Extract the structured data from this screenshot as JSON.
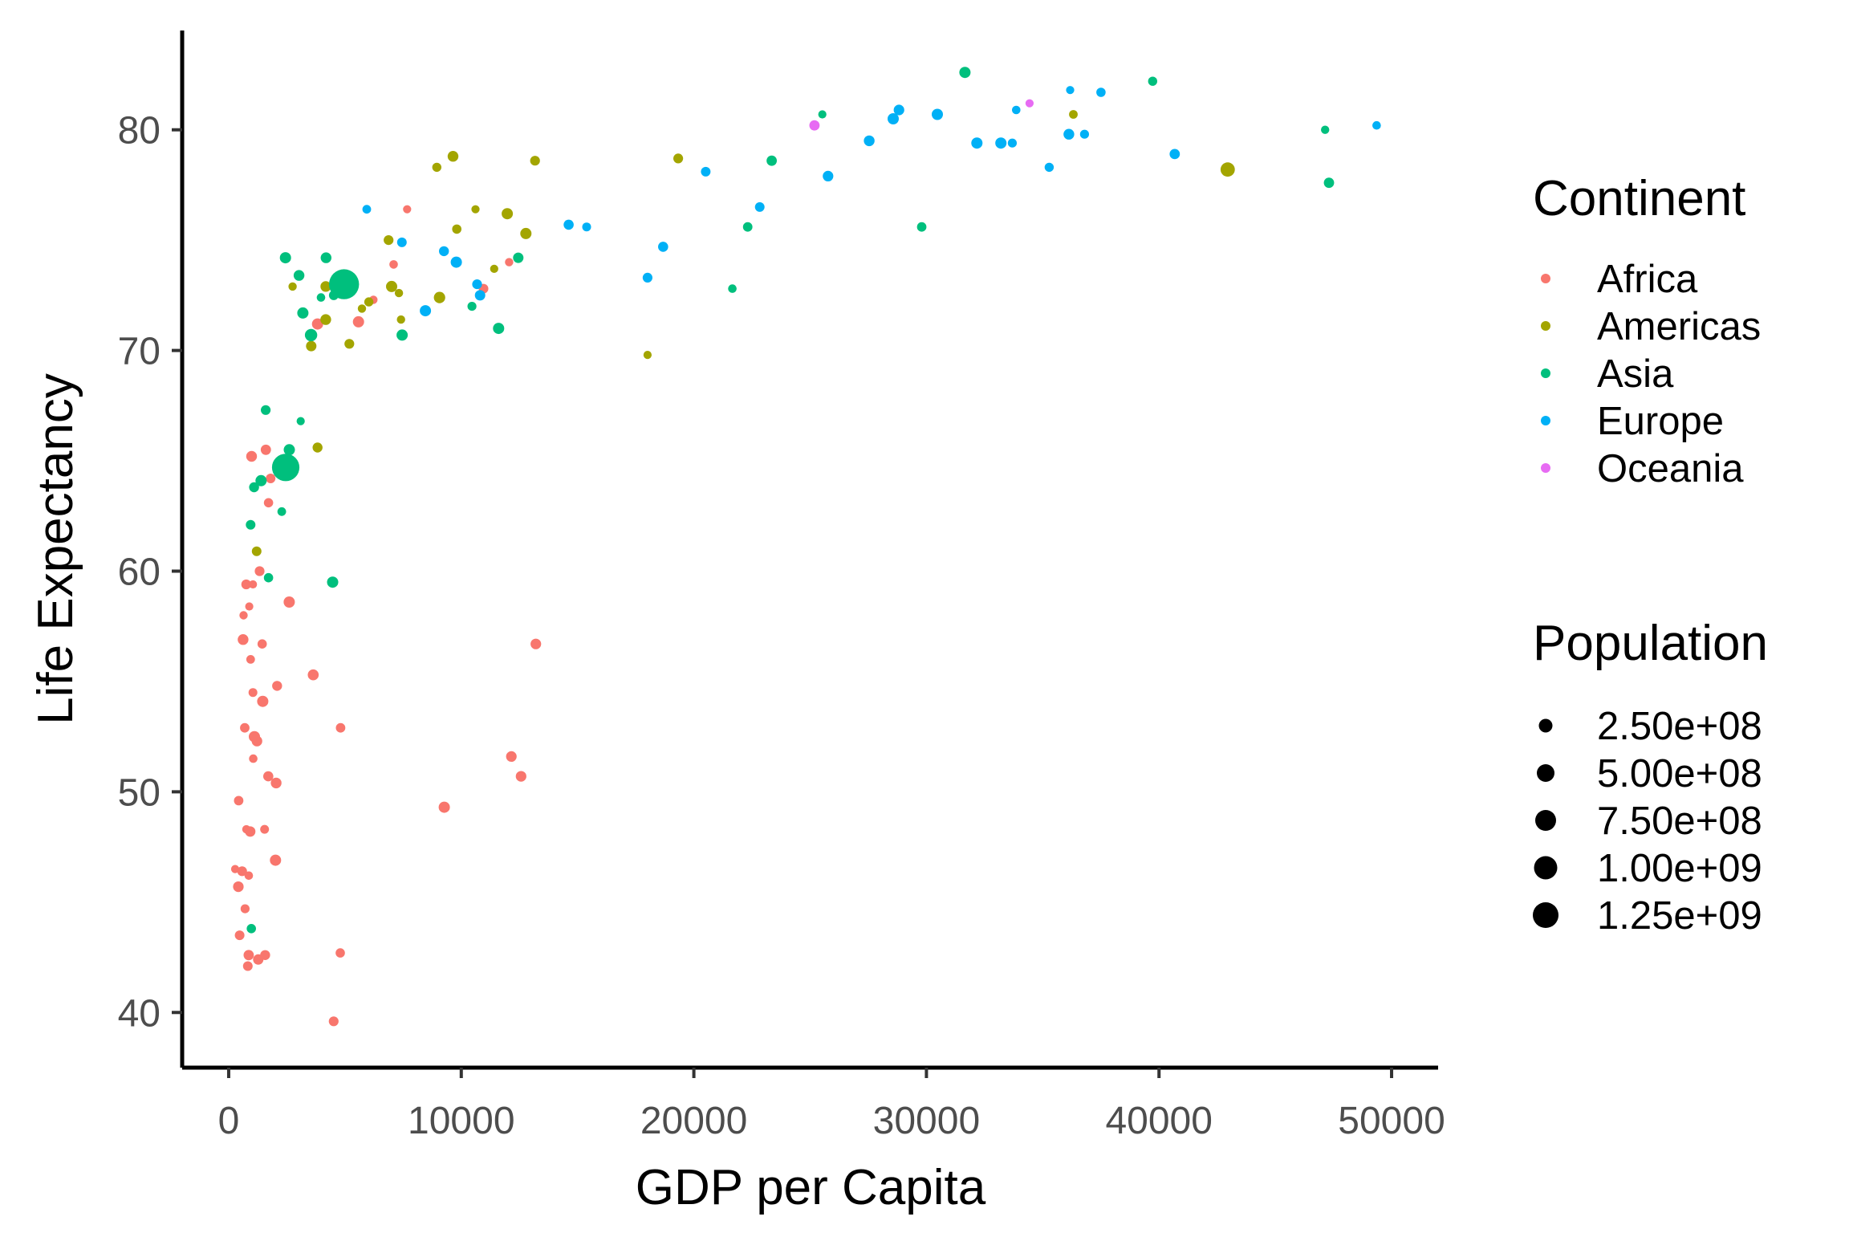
{
  "chart_data": {
    "type": "scatter",
    "title": "",
    "xlabel": "GDP per Capita",
    "ylabel": "Life Expectancy",
    "xlim": [
      -2000,
      52000
    ],
    "ylim": [
      37.5,
      84.5
    ],
    "xticks": [
      0,
      10000,
      20000,
      30000,
      40000,
      50000
    ],
    "xtick_labels": [
      "0",
      "10000",
      "20000",
      "30000",
      "40000",
      "50000"
    ],
    "yticks": [
      40,
      50,
      60,
      70,
      80
    ],
    "ytick_labels": [
      "40",
      "50",
      "60",
      "70",
      "80"
    ],
    "grid": false,
    "legend_position": "right",
    "color_legend": {
      "title": "Continent",
      "entries": [
        "Africa",
        "Americas",
        "Asia",
        "Europe",
        "Oceania"
      ]
    },
    "size_legend": {
      "title": "Population",
      "entries": [
        {
          "label": "2.50e+08",
          "value": 250000000
        },
        {
          "label": "5.00e+08",
          "value": 500000000
        },
        {
          "label": "7.50e+08",
          "value": 750000000
        },
        {
          "label": "1.00e+09",
          "value": 1000000000
        },
        {
          "label": "1.25e+09",
          "value": 1250000000
        }
      ]
    },
    "colors": {
      "Africa": "#F8766D",
      "Americas": "#A3A500",
      "Asia": "#00BF7D",
      "Europe": "#00B0F6",
      "Oceania": "#E76BF3"
    },
    "series": [
      {
        "name": "Africa",
        "points": [
          [
            6223,
            72.3
          ],
          [
            4797,
            42.7
          ],
          [
            1441,
            56.7
          ],
          [
            12570,
            50.7
          ],
          [
            1217,
            52.3
          ],
          [
            430,
            49.6
          ],
          [
            2042,
            50.4
          ],
          [
            706,
            44.7
          ],
          [
            1704,
            50.7
          ],
          [
            986,
            65.2
          ],
          [
            278,
            46.5
          ],
          [
            3633,
            55.3
          ],
          [
            1545,
            48.3
          ],
          [
            2082,
            54.8
          ],
          [
            5581,
            71.3
          ],
          [
            12154,
            51.6
          ],
          [
            641,
            58.0
          ],
          [
            691,
            52.9
          ],
          [
            13206,
            56.7
          ],
          [
            752,
            59.4
          ],
          [
            1328,
            60.0
          ],
          [
            942,
            56.0
          ],
          [
            579,
            46.4
          ],
          [
            1463,
            54.1
          ],
          [
            1569,
            42.6
          ],
          [
            415,
            45.7
          ],
          [
            12057,
            74.0
          ],
          [
            1044,
            59.4
          ],
          [
            759,
            48.3
          ],
          [
            1042,
            54.5
          ],
          [
            1803,
            64.2
          ],
          [
            10957,
            72.8
          ],
          [
            3820,
            71.2
          ],
          [
            824,
            42.1
          ],
          [
            4811,
            52.9
          ],
          [
            620,
            56.9
          ],
          [
            2014,
            46.9
          ],
          [
            7671,
            76.4
          ],
          [
            863,
            46.2
          ],
          [
            1598,
            65.5
          ],
          [
            1712,
            63.1
          ],
          [
            862,
            42.6
          ],
          [
            926,
            48.2
          ],
          [
            9270,
            49.3
          ],
          [
            2602,
            58.6
          ],
          [
            4513,
            39.6
          ],
          [
            1107,
            52.5
          ],
          [
            883,
            58.4
          ],
          [
            7093,
            73.9
          ],
          [
            1056,
            51.5
          ],
          [
            1271,
            42.4
          ],
          [
            470,
            43.5
          ]
        ]
      },
      {
        "name": "Americas",
        "points": [
          [
            12779,
            75.3
          ],
          [
            3822,
            65.6
          ],
          [
            9066,
            72.4
          ],
          [
            36319,
            80.7
          ],
          [
            13172,
            78.6
          ],
          [
            7007,
            72.9
          ],
          [
            9645,
            78.8
          ],
          [
            8948,
            78.3
          ],
          [
            6025,
            72.2
          ],
          [
            6873,
            75.0
          ],
          [
            5728,
            71.9
          ],
          [
            5186,
            70.3
          ],
          [
            4173,
            72.9
          ],
          [
            1202,
            60.9
          ],
          [
            3548,
            70.2
          ],
          [
            7321,
            72.6
          ],
          [
            11978,
            76.2
          ],
          [
            2749,
            72.9
          ],
          [
            9809,
            75.5
          ],
          [
            4173,
            71.4
          ],
          [
            7409,
            71.4
          ],
          [
            19329,
            78.7
          ],
          [
            18009,
            69.8
          ],
          [
            42952,
            78.2
          ],
          [
            10611,
            76.4
          ],
          [
            11416,
            73.7
          ]
        ]
      },
      {
        "name": "Asia",
        "points": [
          [
            975,
            43.8
          ],
          [
            29796,
            75.6
          ],
          [
            1391,
            64.1
          ],
          [
            1714,
            59.7
          ],
          [
            4959,
            73.0
          ],
          [
            39725,
            82.2
          ],
          [
            2452,
            64.7
          ],
          [
            3541,
            70.7
          ],
          [
            11606,
            71.0
          ],
          [
            4471,
            59.5
          ],
          [
            25523,
            80.7
          ],
          [
            31656,
            82.6
          ],
          [
            4519,
            72.5
          ],
          [
            1593,
            67.3
          ],
          [
            23348,
            78.6
          ],
          [
            47307,
            77.6
          ],
          [
            10461,
            72.0
          ],
          [
            12452,
            74.2
          ],
          [
            3096,
            66.8
          ],
          [
            944,
            62.1
          ],
          [
            1091,
            63.8
          ],
          [
            22316,
            75.6
          ],
          [
            2606,
            65.5
          ],
          [
            3190,
            71.7
          ],
          [
            21655,
            72.8
          ],
          [
            47143,
            80.0
          ],
          [
            3970,
            72.4
          ],
          [
            4185,
            74.2
          ],
          [
            7458,
            70.7
          ],
          [
            2442,
            74.2
          ],
          [
            3025,
            73.4
          ],
          [
            2281,
            62.7
          ]
        ]
      },
      {
        "name": "Europe",
        "points": [
          [
            5937,
            76.4
          ],
          [
            36126,
            79.8
          ],
          [
            33693,
            79.4
          ],
          [
            7446,
            74.9
          ],
          [
            10681,
            73.0
          ],
          [
            14619,
            75.7
          ],
          [
            22833,
            76.5
          ],
          [
            35278,
            78.3
          ],
          [
            33207,
            79.4
          ],
          [
            30470,
            80.7
          ],
          [
            32170,
            79.4
          ],
          [
            27538,
            79.5
          ],
          [
            18009,
            73.3
          ],
          [
            36181,
            81.8
          ],
          [
            40676,
            78.9
          ],
          [
            28570,
            80.5
          ],
          [
            9254,
            74.5
          ],
          [
            36798,
            79.8
          ],
          [
            49357,
            80.2
          ],
          [
            15390,
            75.6
          ],
          [
            20510,
            78.1
          ],
          [
            10808,
            72.5
          ],
          [
            9787,
            74.0
          ],
          [
            18678,
            74.7
          ],
          [
            25768,
            77.9
          ],
          [
            28821,
            80.9
          ],
          [
            33860,
            80.9
          ],
          [
            37506,
            81.7
          ],
          [
            8458,
            71.8
          ],
          [
            33203,
            79.4
          ]
        ]
      },
      {
        "name": "Oceania",
        "points": [
          [
            34435,
            81.2
          ],
          [
            25185,
            80.2
          ]
        ]
      }
    ],
    "large_points": [
      {
        "series": "Asia",
        "x": 4959,
        "y": 73.0,
        "population": 1318683096
      },
      {
        "series": "Asia",
        "x": 2452,
        "y": 64.7,
        "population": 1110396331
      },
      {
        "series": "Americas",
        "x": 42952,
        "y": 78.2,
        "population": 301139947
      },
      {
        "series": "Asia",
        "x": 3541,
        "y": 70.7,
        "population": 223547000
      },
      {
        "series": "Americas",
        "x": 9066,
        "y": 72.4,
        "population": 190010647
      },
      {
        "series": "Asia",
        "x": 2606,
        "y": 65.5,
        "population": 169270617
      },
      {
        "series": "Asia",
        "x": 1391,
        "y": 64.1,
        "population": 150448339
      },
      {
        "series": "Africa",
        "x": 2014,
        "y": 46.9,
        "population": 135031164
      },
      {
        "series": "Europe",
        "x": 9787,
        "y": 74.0,
        "population": 141200000
      },
      {
        "series": "Asia",
        "x": 31656,
        "y": 82.6,
        "population": 127467972
      },
      {
        "series": "Americas",
        "x": 11978,
        "y": 76.2,
        "population": 108700891
      },
      {
        "series": "Asia",
        "x": 3190,
        "y": 71.7,
        "population": 91077287
      },
      {
        "series": "Asia",
        "x": 2442,
        "y": 74.2,
        "population": 85262356
      },
      {
        "series": "Europe",
        "x": 32170,
        "y": 79.4,
        "population": 82400996
      },
      {
        "series": "Africa",
        "x": 690,
        "y": 52.9,
        "population": 76511887
      },
      {
        "series": "Africa",
        "x": 5581,
        "y": 71.3,
        "population": 80264543
      },
      {
        "series": "Asia",
        "x": 11606,
        "y": 71.0,
        "population": 69453570
      },
      {
        "series": "Europe",
        "x": 30470,
        "y": 80.7,
        "population": 61083916
      },
      {
        "series": "Europe",
        "x": 33203,
        "y": 79.4,
        "population": 60776238
      },
      {
        "series": "Europe",
        "x": 28570,
        "y": 80.5,
        "population": 58147733
      },
      {
        "series": "Asia",
        "x": 7458,
        "y": 70.7,
        "population": 65068149
      },
      {
        "series": "Africa",
        "x": 1107,
        "y": 52.5,
        "population": 64606759
      },
      {
        "series": "Africa",
        "x": 9270,
        "y": 49.3,
        "population": 43997828
      },
      {
        "series": "Europe",
        "x": 8458,
        "y": 71.8,
        "population": 71158647
      },
      {
        "series": "Americas",
        "x": 7007,
        "y": 72.9,
        "population": 44227550
      },
      {
        "series": "Americas",
        "x": 12779,
        "y": 75.3,
        "population": 40301927
      },
      {
        "series": "Africa",
        "x": 2602,
        "y": 58.6,
        "population": 42292929
      },
      {
        "series": "Asia",
        "x": 4471,
        "y": 59.5,
        "population": 47761980
      },
      {
        "series": "Africa",
        "x": 1463,
        "y": 54.1,
        "population": 38139640
      },
      {
        "series": "Africa",
        "x": 3820,
        "y": 71.2,
        "population": 33757175
      }
    ]
  }
}
